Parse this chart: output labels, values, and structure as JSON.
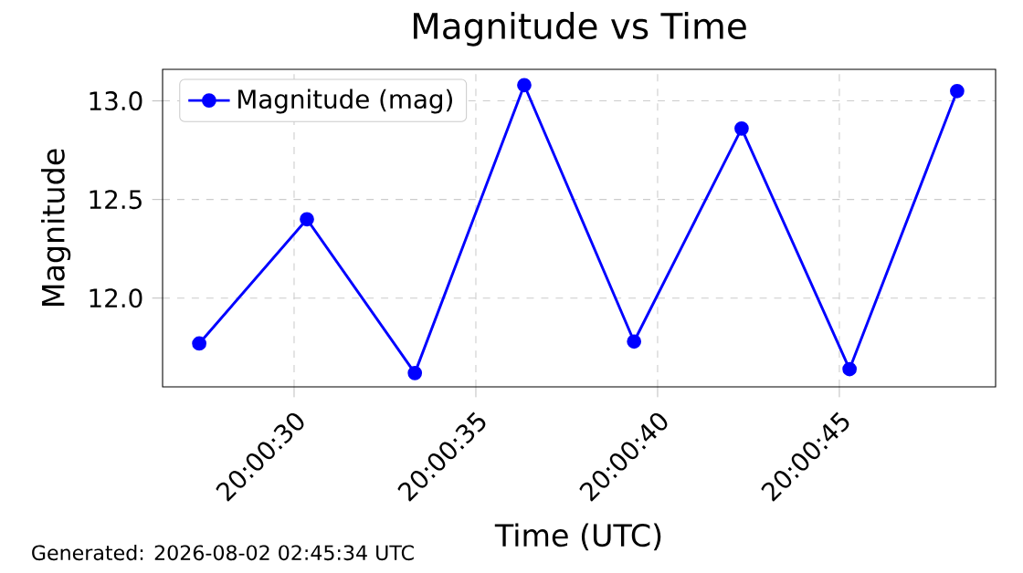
{
  "chart_data": {
    "type": "line",
    "title": "Magnitude vs Time",
    "xlabel": "Time (UTC)",
    "ylabel": "Magnitude",
    "annotations": [
      "Generated: 2026-08-02 02:45:34 UTC"
    ],
    "x": [
      20.007608,
      20.008431,
      20.009256,
      20.010092,
      20.010931,
      20.011753,
      20.012578,
      20.0134
    ],
    "series": [
      {
        "name": "Magnitude (mag)",
        "color": "#0000ff",
        "values": [
          11.77,
          12.4,
          11.62,
          13.08,
          11.78,
          12.86,
          11.64,
          13.05
        ]
      }
    ],
    "xlim": [
      20.007328,
      20.013694
    ],
    "xticks": [
      {
        "value": 20.008333,
        "label": "20:00:30"
      },
      {
        "value": 20.009722,
        "label": "20:00:35"
      },
      {
        "value": 20.011111,
        "label": "20:00:40"
      },
      {
        "value": 20.0125,
        "label": "20:00:45"
      }
    ],
    "ylim": [
      11.55,
      13.16
    ],
    "yticks": [
      {
        "value": 12.0,
        "label": "12.0"
      },
      {
        "value": 12.5,
        "label": "12.5"
      },
      {
        "value": 13.0,
        "label": "13.0"
      }
    ],
    "grid": true,
    "legend": "top left",
    "marker": "circle",
    "line_style": "solid"
  }
}
